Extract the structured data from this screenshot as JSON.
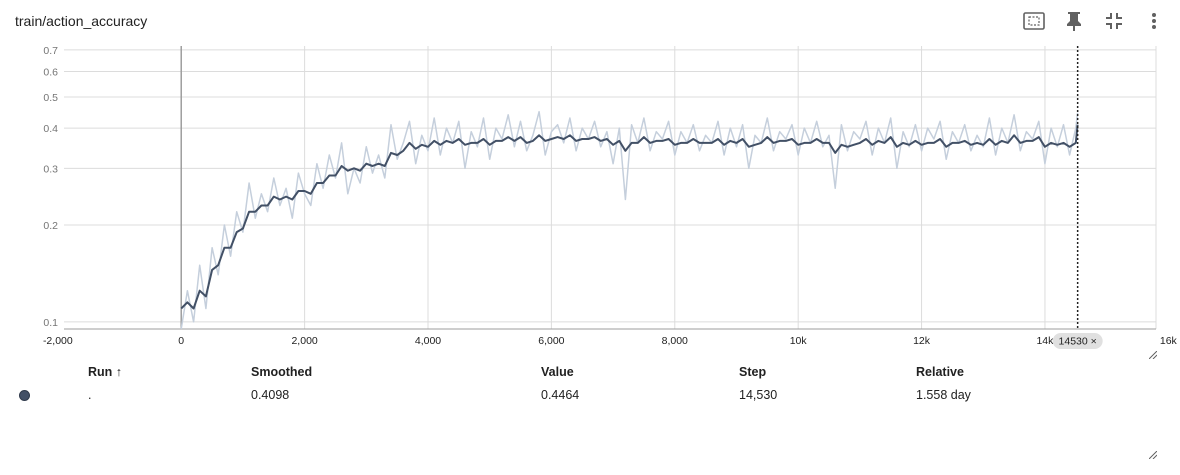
{
  "card": {
    "title": "train/action_accuracy",
    "toolbar": [
      {
        "name": "fit-domain-icon",
        "label": "Fit domain to data"
      },
      {
        "name": "pin-icon",
        "label": "Pin card"
      },
      {
        "name": "collapse-icon",
        "label": "Collapse card"
      },
      {
        "name": "more-vert-icon",
        "label": "More actions"
      }
    ]
  },
  "chart_data": {
    "type": "line",
    "title": "train/action_accuracy",
    "xlabel": "",
    "ylabel": "",
    "y_scale": "log",
    "xlim": [
      -1900,
      15800
    ],
    "ylim": [
      0.095,
      0.72
    ],
    "grid": true,
    "x_ticks": [
      {
        "v": -2000,
        "label": "-2,000",
        "faded": true
      },
      {
        "v": 0,
        "label": "0"
      },
      {
        "v": 2000,
        "label": "2,000"
      },
      {
        "v": 4000,
        "label": "4,000"
      },
      {
        "v": 6000,
        "label": "6,000"
      },
      {
        "v": 8000,
        "label": "8,000"
      },
      {
        "v": 10000,
        "label": "10k"
      },
      {
        "v": 12000,
        "label": "12k"
      },
      {
        "v": 14000,
        "label": "14k"
      },
      {
        "v": 16000,
        "label": "16k",
        "faded": true
      }
    ],
    "y_ticks": [
      {
        "v": 0.1,
        "label": "0.1"
      },
      {
        "v": 0.2,
        "label": "0.2"
      },
      {
        "v": 0.3,
        "label": "0.3"
      },
      {
        "v": 0.4,
        "label": "0.4"
      },
      {
        "v": 0.5,
        "label": "0.5"
      },
      {
        "v": 0.6,
        "label": "0.6"
      },
      {
        "v": 0.7,
        "label": "0.7"
      }
    ],
    "series": [
      {
        "role": "raw",
        "color": "#c5cfdc",
        "x": [
          0,
          100,
          200,
          300,
          400,
          500,
          600,
          700,
          800,
          900,
          1000,
          1100,
          1200,
          1300,
          1400,
          1500,
          1600,
          1700,
          1800,
          1900,
          2000,
          2100,
          2200,
          2300,
          2400,
          2500,
          2600,
          2700,
          2800,
          2900,
          3000,
          3100,
          3200,
          3300,
          3400,
          3500,
          3600,
          3700,
          3800,
          3900,
          4000,
          4100,
          4200,
          4300,
          4400,
          4500,
          4600,
          4700,
          4800,
          4900,
          5000,
          5100,
          5200,
          5300,
          5400,
          5500,
          5600,
          5700,
          5800,
          5900,
          6000,
          6100,
          6200,
          6300,
          6400,
          6500,
          6600,
          6700,
          6800,
          6900,
          7000,
          7100,
          7200,
          7300,
          7400,
          7500,
          7600,
          7700,
          7800,
          7900,
          8000,
          8100,
          8200,
          8300,
          8400,
          8500,
          8600,
          8700,
          8800,
          8900,
          9000,
          9100,
          9200,
          9300,
          9400,
          9500,
          9600,
          9700,
          9800,
          9900,
          10000,
          10100,
          10200,
          10300,
          10400,
          10500,
          10600,
          10700,
          10800,
          10900,
          11000,
          11100,
          11200,
          11300,
          11400,
          11500,
          11600,
          11700,
          11800,
          11900,
          12000,
          12100,
          12200,
          12300,
          12400,
          12500,
          12600,
          12700,
          12800,
          12900,
          13000,
          13100,
          13200,
          13300,
          13400,
          13500,
          13600,
          13700,
          13800,
          13900,
          14000,
          14100,
          14200,
          14300,
          14400,
          14500,
          14530
        ],
        "y": [
          0.095,
          0.125,
          0.1,
          0.15,
          0.11,
          0.17,
          0.14,
          0.2,
          0.16,
          0.22,
          0.19,
          0.27,
          0.21,
          0.25,
          0.22,
          0.28,
          0.23,
          0.26,
          0.21,
          0.29,
          0.25,
          0.23,
          0.31,
          0.26,
          0.33,
          0.28,
          0.36,
          0.25,
          0.3,
          0.27,
          0.35,
          0.29,
          0.33,
          0.28,
          0.41,
          0.32,
          0.36,
          0.42,
          0.31,
          0.38,
          0.34,
          0.43,
          0.33,
          0.4,
          0.36,
          0.42,
          0.3,
          0.39,
          0.35,
          0.43,
          0.32,
          0.4,
          0.37,
          0.44,
          0.35,
          0.42,
          0.34,
          0.38,
          0.45,
          0.33,
          0.39,
          0.41,
          0.36,
          0.43,
          0.34,
          0.4,
          0.37,
          0.42,
          0.35,
          0.39,
          0.31,
          0.4,
          0.24,
          0.41,
          0.36,
          0.43,
          0.34,
          0.39,
          0.37,
          0.42,
          0.33,
          0.39,
          0.36,
          0.41,
          0.34,
          0.38,
          0.36,
          0.42,
          0.33,
          0.4,
          0.35,
          0.41,
          0.3,
          0.38,
          0.36,
          0.43,
          0.34,
          0.39,
          0.37,
          0.41,
          0.33,
          0.4,
          0.36,
          0.42,
          0.35,
          0.38,
          0.26,
          0.41,
          0.34,
          0.39,
          0.37,
          0.42,
          0.33,
          0.4,
          0.36,
          0.43,
          0.3,
          0.39,
          0.35,
          0.41,
          0.34,
          0.4,
          0.37,
          0.42,
          0.32,
          0.39,
          0.36,
          0.41,
          0.34,
          0.38,
          0.35,
          0.43,
          0.33,
          0.4,
          0.36,
          0.44,
          0.34,
          0.39,
          0.37,
          0.42,
          0.31,
          0.4,
          0.35,
          0.41,
          0.33,
          0.4,
          0.4464
        ]
      },
      {
        "role": "smoothed",
        "color": "#425066",
        "x": [
          0,
          100,
          200,
          300,
          400,
          500,
          600,
          700,
          800,
          900,
          1000,
          1100,
          1200,
          1300,
          1400,
          1500,
          1600,
          1700,
          1800,
          1900,
          2000,
          2100,
          2200,
          2300,
          2400,
          2500,
          2600,
          2700,
          2800,
          2900,
          3000,
          3100,
          3200,
          3300,
          3400,
          3500,
          3600,
          3700,
          3800,
          3900,
          4000,
          4100,
          4200,
          4300,
          4400,
          4500,
          4600,
          4700,
          4800,
          4900,
          5000,
          5100,
          5200,
          5300,
          5400,
          5500,
          5600,
          5700,
          5800,
          5900,
          6000,
          6100,
          6200,
          6300,
          6400,
          6500,
          6600,
          6700,
          6800,
          6900,
          7000,
          7100,
          7200,
          7300,
          7400,
          7500,
          7600,
          7700,
          7800,
          7900,
          8000,
          8100,
          8200,
          8300,
          8400,
          8500,
          8600,
          8700,
          8800,
          8900,
          9000,
          9100,
          9200,
          9300,
          9400,
          9500,
          9600,
          9700,
          9800,
          9900,
          10000,
          10100,
          10200,
          10300,
          10400,
          10500,
          10600,
          10700,
          10800,
          10900,
          11000,
          11100,
          11200,
          11300,
          11400,
          11500,
          11600,
          11700,
          11800,
          11900,
          12000,
          12100,
          12200,
          12300,
          12400,
          12500,
          12600,
          12700,
          12800,
          12900,
          13000,
          13100,
          13200,
          13300,
          13400,
          13500,
          13600,
          13700,
          13800,
          13900,
          14000,
          14100,
          14200,
          14300,
          14400,
          14500,
          14530
        ],
        "y": [
          0.11,
          0.115,
          0.11,
          0.125,
          0.12,
          0.145,
          0.15,
          0.17,
          0.17,
          0.19,
          0.195,
          0.22,
          0.22,
          0.23,
          0.23,
          0.245,
          0.24,
          0.245,
          0.24,
          0.255,
          0.255,
          0.25,
          0.27,
          0.27,
          0.285,
          0.285,
          0.305,
          0.295,
          0.3,
          0.295,
          0.31,
          0.305,
          0.31,
          0.305,
          0.335,
          0.33,
          0.34,
          0.36,
          0.345,
          0.355,
          0.35,
          0.365,
          0.355,
          0.365,
          0.36,
          0.37,
          0.355,
          0.36,
          0.36,
          0.37,
          0.355,
          0.365,
          0.365,
          0.375,
          0.365,
          0.375,
          0.36,
          0.365,
          0.38,
          0.365,
          0.37,
          0.375,
          0.37,
          0.38,
          0.365,
          0.37,
          0.37,
          0.375,
          0.365,
          0.37,
          0.355,
          0.365,
          0.34,
          0.36,
          0.36,
          0.375,
          0.36,
          0.365,
          0.365,
          0.37,
          0.355,
          0.36,
          0.36,
          0.37,
          0.36,
          0.36,
          0.36,
          0.37,
          0.355,
          0.365,
          0.36,
          0.37,
          0.35,
          0.355,
          0.36,
          0.375,
          0.36,
          0.365,
          0.365,
          0.37,
          0.355,
          0.36,
          0.36,
          0.37,
          0.36,
          0.36,
          0.335,
          0.355,
          0.35,
          0.355,
          0.36,
          0.37,
          0.355,
          0.365,
          0.36,
          0.375,
          0.35,
          0.36,
          0.355,
          0.365,
          0.355,
          0.36,
          0.36,
          0.37,
          0.35,
          0.36,
          0.36,
          0.365,
          0.355,
          0.36,
          0.355,
          0.37,
          0.355,
          0.365,
          0.36,
          0.38,
          0.36,
          0.365,
          0.365,
          0.375,
          0.35,
          0.36,
          0.355,
          0.36,
          0.35,
          0.36,
          0.4098
        ]
      }
    ],
    "cursor_step": 14530,
    "cursor_label": "14530 ×"
  },
  "table": {
    "headers": {
      "run": "Run ↑",
      "smoothed": "Smoothed",
      "value": "Value",
      "step": "Step",
      "relative": "Relative"
    },
    "rows": [
      {
        "color": "#425066",
        "run": ".",
        "smoothed": "0.4098",
        "value": "0.4464",
        "step": "14,530",
        "relative": "1.558 day"
      }
    ]
  }
}
